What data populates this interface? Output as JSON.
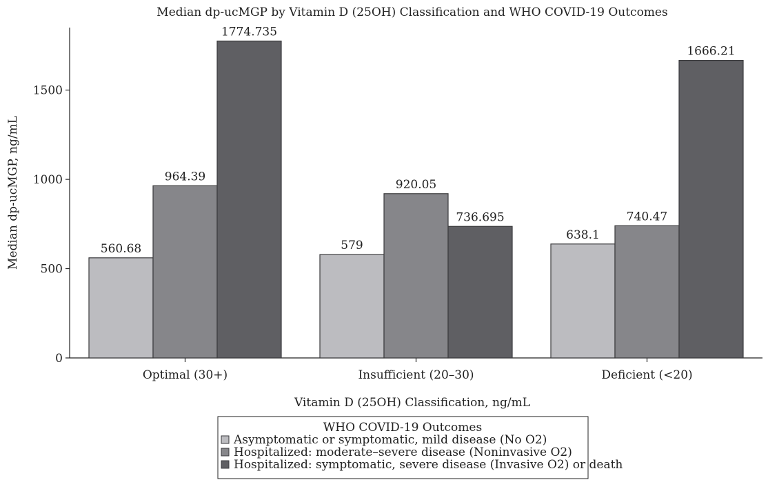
{
  "chart_data": {
    "type": "bar",
    "title": "Median dp-ucMGP by Vitamin D (25OH) Classification and WHO COVID-19 Outcomes",
    "xlabel": "Vitamin D (25OH) Classification, ng/mL",
    "ylabel": "Median dp-ucMGP, ng/mL",
    "categories": [
      "Optimal (30+)",
      "Insufficient (20–30)",
      "Deficient (<20)"
    ],
    "series": [
      {
        "name": "Asymptomatic or symptomatic, mild disease (No O2)",
        "values": [
          560.68,
          579,
          638.1
        ],
        "labels": [
          "560.68",
          "579",
          "638.1"
        ],
        "color": "#bcbcc0"
      },
      {
        "name": "Hospitalized: moderate–severe disease (Noninvasive O2)",
        "values": [
          964.39,
          920.05,
          740.47
        ],
        "labels": [
          "964.39",
          "920.05",
          "740.47"
        ],
        "color": "#86868a"
      },
      {
        "name": "Hospitalized: symptomatic, severe disease (Invasive O2) or death",
        "values": [
          1774.735,
          736.695,
          1666.21
        ],
        "labels": [
          "1774.735",
          "736.695",
          "1666.21"
        ],
        "color": "#5f5f63"
      }
    ],
    "ylim": [
      0,
      1850
    ],
    "yticks": [
      0,
      500,
      1000,
      1500
    ],
    "grid": false,
    "legend": {
      "title": "WHO COVID-19 Outcomes",
      "position": "bottom"
    }
  }
}
